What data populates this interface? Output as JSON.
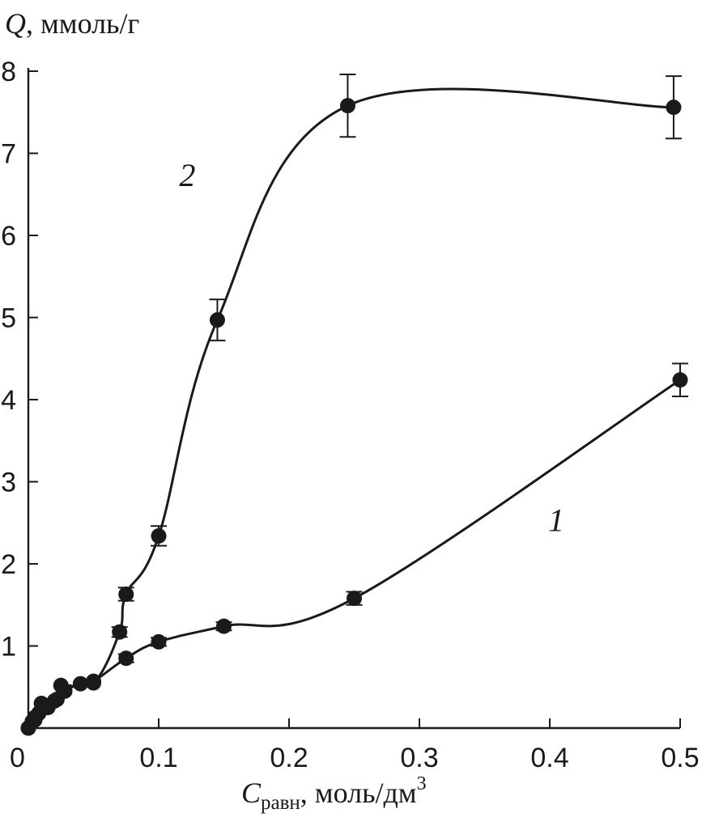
{
  "chart_data": {
    "type": "line",
    "title": "",
    "ylabel": {
      "symbol": "Q",
      "unit": ", ммоль/г"
    },
    "xlabel": {
      "symbol": "C",
      "subscript": "равн",
      "unit": ", моль/дм",
      "superscript": "3"
    },
    "xlim": [
      0,
      0.5
    ],
    "ylim": [
      0,
      8
    ],
    "x_ticks": [
      {
        "value": 0,
        "label": "0"
      },
      {
        "value": 0.1,
        "label": "0.1"
      },
      {
        "value": 0.2,
        "label": "0.2"
      },
      {
        "value": 0.3,
        "label": "0.3"
      },
      {
        "value": 0.4,
        "label": "0.4"
      },
      {
        "value": 0.5,
        "label": "0.5"
      }
    ],
    "y_ticks": [
      {
        "value": 1,
        "label": "1"
      },
      {
        "value": 2,
        "label": "2"
      },
      {
        "value": 3,
        "label": "3"
      },
      {
        "value": 4,
        "label": "4"
      },
      {
        "value": 5,
        "label": "5"
      },
      {
        "value": 6,
        "label": "6"
      },
      {
        "value": 7,
        "label": "7"
      },
      {
        "value": 8,
        "label": "8"
      }
    ],
    "grid": false,
    "legend": "none",
    "series": [
      {
        "name": "1",
        "color": "#1a1a1a",
        "x": [
          0.0,
          0.003,
          0.005,
          0.008,
          0.012,
          0.02,
          0.028,
          0.04,
          0.05,
          0.075,
          0.1,
          0.15,
          0.25,
          0.5
        ],
        "y": [
          0.0,
          0.08,
          0.13,
          0.18,
          0.28,
          0.33,
          0.45,
          0.54,
          0.57,
          0.85,
          1.05,
          1.24,
          1.58,
          4.24
        ],
        "err": [
          0,
          0,
          0,
          0,
          0,
          0,
          0,
          0,
          0,
          0.05,
          0.05,
          0.05,
          0.08,
          0.2
        ],
        "curve_label": {
          "text": "1",
          "x": 0.405,
          "y": 2.4
        }
      },
      {
        "name": "2",
        "color": "#1a1a1a",
        "x": [
          0.0,
          0.005,
          0.01,
          0.015,
          0.022,
          0.025,
          0.05,
          0.07,
          0.075,
          0.1,
          0.145,
          0.245,
          0.495
        ],
        "y": [
          0.0,
          0.1,
          0.3,
          0.25,
          0.35,
          0.52,
          0.55,
          1.17,
          1.63,
          2.34,
          4.97,
          7.58,
          7.56
        ],
        "err": [
          0,
          0,
          0,
          0,
          0,
          0,
          0,
          0.06,
          0.08,
          0.12,
          0.25,
          0.38,
          0.38
        ],
        "curve_label": {
          "text": "2",
          "x": 0.122,
          "y": 6.6
        }
      }
    ]
  }
}
